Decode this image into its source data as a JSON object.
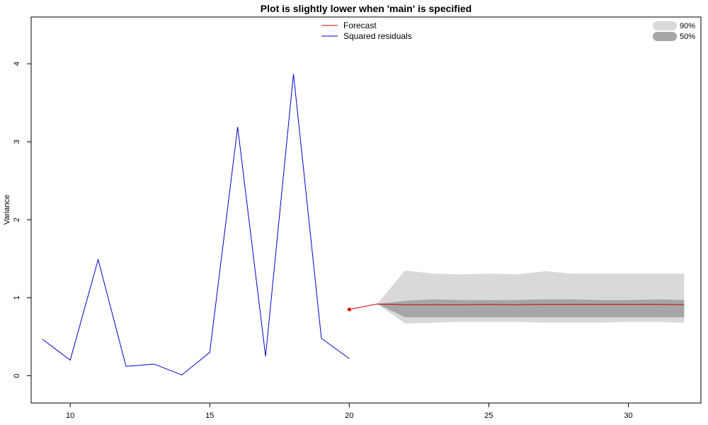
{
  "chart_data": {
    "type": "line",
    "title": "Plot is slightly lower when 'main' is specified",
    "xlabel": "",
    "ylabel": "Variance",
    "xlim": [
      8.6,
      32.6
    ],
    "ylim": [
      -0.35,
      4.6
    ],
    "xticks": [
      10,
      15,
      20,
      25,
      30
    ],
    "yticks": [
      0,
      1,
      2,
      3,
      4
    ],
    "grid": false,
    "legend_position": "top-center",
    "series": [
      {
        "name": "Squared residuals",
        "color": "#0000cc",
        "x": [
          9,
          10,
          11,
          12,
          13,
          14,
          15,
          16,
          17,
          18,
          19,
          20
        ],
        "y": [
          0.47,
          0.2,
          1.49,
          0.12,
          0.15,
          0.01,
          0.3,
          3.19,
          0.25,
          3.87,
          0.48,
          0.22
        ]
      },
      {
        "name": "Forecast",
        "color": "#cc0000",
        "x": [
          20,
          21,
          22,
          23,
          24,
          25,
          26,
          27,
          28,
          29,
          30,
          31,
          32
        ],
        "y": [
          0.85,
          0.92,
          0.91,
          0.91,
          0.91,
          0.915,
          0.91,
          0.915,
          0.915,
          0.915,
          0.915,
          0.915,
          0.91
        ]
      }
    ],
    "bands": [
      {
        "name": "90%",
        "color": "#d9d9d9",
        "x": [
          21,
          22,
          23,
          24,
          25,
          26,
          27,
          28,
          29,
          30,
          31,
          32
        ],
        "lower": [
          0.92,
          0.67,
          0.68,
          0.69,
          0.69,
          0.69,
          0.68,
          0.68,
          0.68,
          0.69,
          0.69,
          0.68
        ],
        "upper": [
          0.92,
          1.35,
          1.31,
          1.3,
          1.31,
          1.3,
          1.34,
          1.31,
          1.31,
          1.31,
          1.31,
          1.31
        ]
      },
      {
        "name": "50%",
        "color": "#a6a6a6",
        "x": [
          21,
          22,
          23,
          24,
          25,
          26,
          27,
          28,
          29,
          30,
          31,
          32
        ],
        "lower": [
          0.92,
          0.75,
          0.75,
          0.75,
          0.75,
          0.75,
          0.75,
          0.75,
          0.75,
          0.75,
          0.75,
          0.75
        ],
        "upper": [
          0.92,
          0.96,
          0.98,
          0.97,
          0.97,
          0.97,
          0.98,
          0.98,
          0.97,
          0.97,
          0.98,
          0.97
        ]
      }
    ],
    "markers": [
      {
        "series": "Forecast",
        "x": 20,
        "y": 0.85,
        "color": "#cc0000"
      }
    ],
    "legend_lines": [
      "Forecast",
      "Squared residuals"
    ],
    "legend_bands": [
      "90%",
      "50%"
    ]
  }
}
